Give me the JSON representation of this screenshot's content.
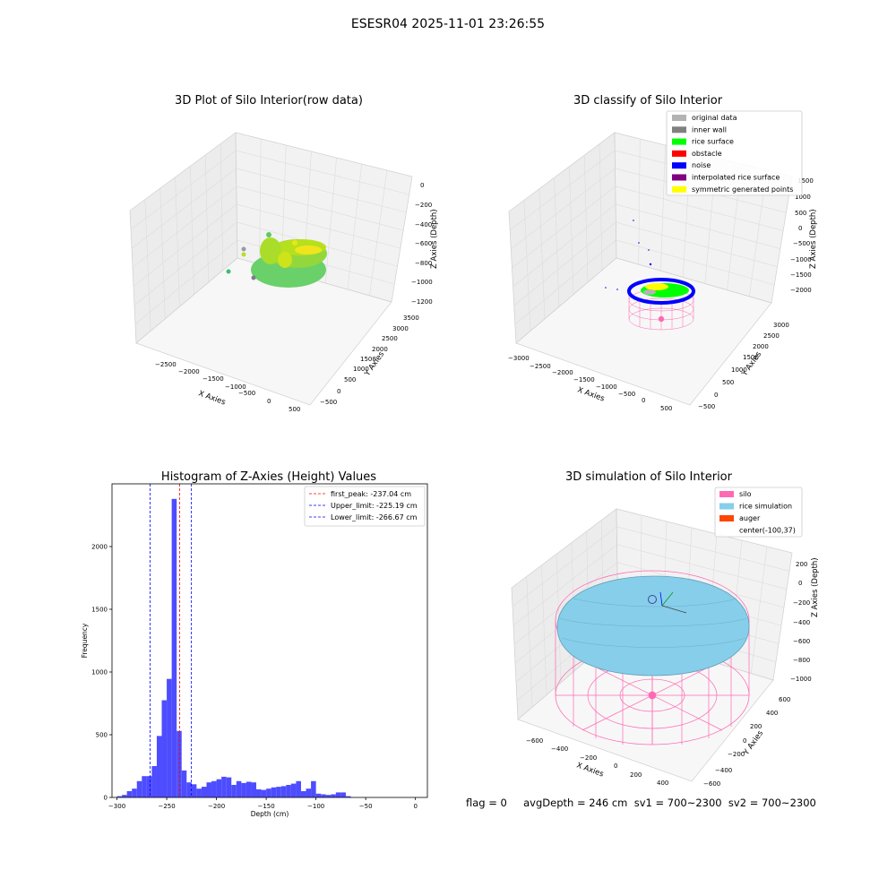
{
  "figure": {
    "suptitle": "ESESR04 2025-11-01 23:26:55",
    "status_text": "flag = 0     avgDepth = 246 cm  sv1 = 700~2300  sv2 = 700~2300"
  },
  "chart_data": [
    {
      "type": "scatter",
      "title": "3D Plot of Silo Interior(row data)",
      "xlabel": "X Axies",
      "ylabel": "Y Axies",
      "zlabel": "Z Axies (Depth)",
      "x_ticks": [
        "−2500",
        "−2000",
        "−1500",
        "−1000",
        "−500",
        "0",
        "500"
      ],
      "y_ticks": [
        "−500",
        "0",
        "500",
        "1000",
        "1500",
        "2000",
        "2500",
        "3000",
        "3500"
      ],
      "z_ticks": [
        "0",
        "−200",
        "−400",
        "−600",
        "−800",
        "−1000",
        "−1200"
      ],
      "xlim": [
        -2800,
        600
      ],
      "ylim": [
        -600,
        3600
      ],
      "zlim": [
        -1300,
        50
      ],
      "colormap": "viridis-like (green to yellow)"
    },
    {
      "type": "scatter",
      "title": "3D classify of Silo Interior",
      "xlabel": "X Axies",
      "ylabel": "Y Axies",
      "zlabel": "Z Axies (Depth)",
      "x_ticks": [
        "−3000",
        "−2500",
        "−2000",
        "−1500",
        "−1000",
        "−500",
        "0",
        "500"
      ],
      "y_ticks": [
        "−500",
        "0",
        "500",
        "1000",
        "1500",
        "2000",
        "2500",
        "3000"
      ],
      "z_ticks": [
        "1500",
        "1000",
        "500",
        "0",
        "−500",
        "−1000",
        "−1500",
        "−2000"
      ],
      "legend": [
        {
          "label": "original data",
          "color": "#b3b3b3"
        },
        {
          "label": "inner wall",
          "color": "#808080"
        },
        {
          "label": "rice surface",
          "color": "#00ff00"
        },
        {
          "label": "obstacle",
          "color": "#ff0000"
        },
        {
          "label": "noise",
          "color": "#0000ff"
        },
        {
          "label": "interpolated rice surface",
          "color": "#800080"
        },
        {
          "label": "symmetric generated points",
          "color": "#ffff00"
        }
      ],
      "legend_position": "upper right"
    },
    {
      "type": "bar",
      "title": "Histogram of Z-Axies (Height) Values",
      "xlabel": "Depth (cm)",
      "ylabel": "Frequency",
      "xlim": [
        -305,
        12
      ],
      "ylim": [
        0,
        2500
      ],
      "x_ticks": [
        -300,
        -250,
        -200,
        -150,
        -100,
        -50,
        0
      ],
      "y_ticks": [
        0,
        500,
        1000,
        1500,
        2000
      ],
      "bin_width": 5,
      "bins": [
        {
          "left": -300,
          "count": 10
        },
        {
          "left": -295,
          "count": 20
        },
        {
          "left": -290,
          "count": 50
        },
        {
          "left": -285,
          "count": 70
        },
        {
          "left": -280,
          "count": 130
        },
        {
          "left": -275,
          "count": 170
        },
        {
          "left": -270,
          "count": 170
        },
        {
          "left": -265,
          "count": 250
        },
        {
          "left": -260,
          "count": 490
        },
        {
          "left": -255,
          "count": 775
        },
        {
          "left": -250,
          "count": 945
        },
        {
          "left": -245,
          "count": 2380
        },
        {
          "left": -240,
          "count": 530
        },
        {
          "left": -235,
          "count": 215
        },
        {
          "left": -230,
          "count": 120
        },
        {
          "left": -225,
          "count": 105
        },
        {
          "left": -220,
          "count": 70
        },
        {
          "left": -215,
          "count": 85
        },
        {
          "left": -210,
          "count": 120
        },
        {
          "left": -205,
          "count": 130
        },
        {
          "left": -200,
          "count": 145
        },
        {
          "left": -195,
          "count": 165
        },
        {
          "left": -190,
          "count": 160
        },
        {
          "left": -185,
          "count": 100
        },
        {
          "left": -180,
          "count": 130
        },
        {
          "left": -175,
          "count": 115
        },
        {
          "left": -170,
          "count": 125
        },
        {
          "left": -165,
          "count": 120
        },
        {
          "left": -160,
          "count": 65
        },
        {
          "left": -155,
          "count": 60
        },
        {
          "left": -150,
          "count": 70
        },
        {
          "left": -145,
          "count": 80
        },
        {
          "left": -140,
          "count": 85
        },
        {
          "left": -135,
          "count": 90
        },
        {
          "left": -130,
          "count": 100
        },
        {
          "left": -125,
          "count": 110
        },
        {
          "left": -120,
          "count": 130
        },
        {
          "left": -115,
          "count": 50
        },
        {
          "left": -110,
          "count": 70
        },
        {
          "left": -105,
          "count": 130
        },
        {
          "left": -100,
          "count": 30
        },
        {
          "left": -95,
          "count": 25
        },
        {
          "left": -90,
          "count": 20
        },
        {
          "left": -85,
          "count": 25
        },
        {
          "left": -80,
          "count": 40
        },
        {
          "left": -75,
          "count": 40
        },
        {
          "left": -70,
          "count": 10
        }
      ],
      "bar_color": "#4d4dff",
      "vlines": [
        {
          "value": -237.04,
          "color": "#ff0000"
        },
        {
          "value": -225.19,
          "color": "#0000ff"
        },
        {
          "value": -266.67,
          "color": "#0000ff"
        }
      ],
      "legend": [
        {
          "label": "first_peak: -237.04 cm",
          "color": "#ff0000"
        },
        {
          "label": "Upper_limit: -225.19 cm",
          "color": "#0000ff"
        },
        {
          "label": "Lower_limit: -266.67 cm",
          "color": "#0000ff"
        }
      ],
      "legend_position": "upper right"
    },
    {
      "type": "surface",
      "title": "3D simulation of Silo Interior",
      "xlabel": "X Axies",
      "ylabel": "Y Axies",
      "zlabel": "Z Axies (Depth)",
      "x_ticks": [
        "−600",
        "−400",
        "−200",
        "0",
        "200",
        "400"
      ],
      "y_ticks": [
        "−600",
        "−400",
        "−200",
        "0",
        "200",
        "400",
        "600"
      ],
      "z_ticks": [
        "200",
        "0",
        "−200",
        "−400",
        "−600",
        "−800",
        "−1000"
      ],
      "legend": [
        {
          "label": "silo",
          "color": "#ff69b4"
        },
        {
          "label": "rice simulation",
          "color": "#87ceeb"
        },
        {
          "label": "auger",
          "color": "#ff4500"
        },
        {
          "label": "center(-100,37)",
          "color": ""
        }
      ],
      "legend_position": "upper right"
    }
  ]
}
